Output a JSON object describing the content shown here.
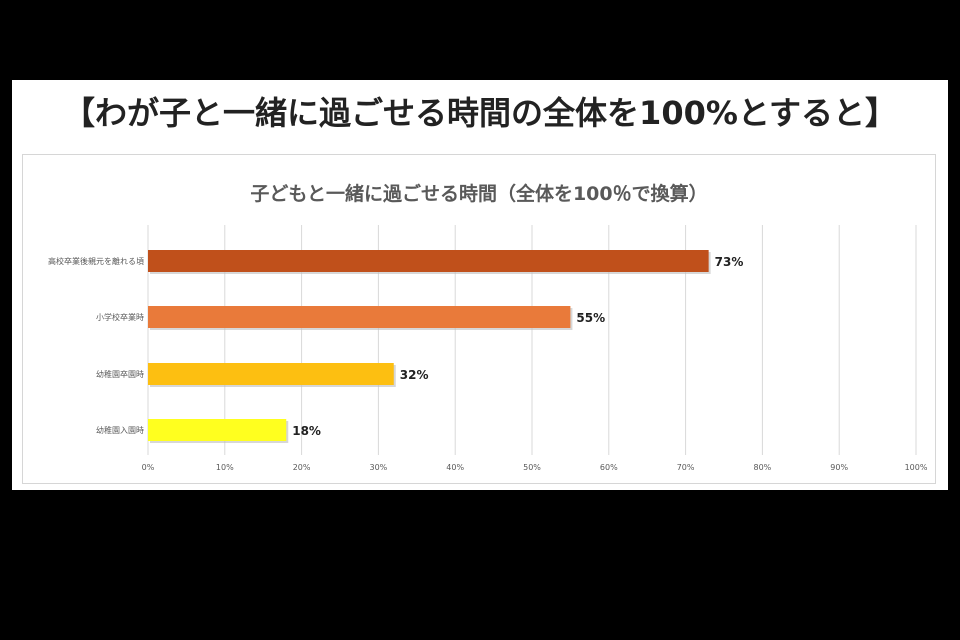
{
  "page": {
    "headline": "【わが子と一緒に過ごせる時間の全体を100%とすると】"
  },
  "colors": {
    "background": "#000000",
    "panel": "#ffffff",
    "gridline": "#d9d9d9"
  },
  "chart_data": {
    "type": "bar",
    "orientation": "horizontal",
    "title": "子どもと一緒に過ごせる時間（全体を100％で換算）",
    "categories": [
      "高校卒業後親元を離れる頃",
      "小学校卒業時",
      "幼稚園卒園時",
      "幼稚園入園時"
    ],
    "values": [
      73,
      55,
      32,
      18
    ],
    "value_labels": [
      "73%",
      "55%",
      "32%",
      "18%"
    ],
    "bar_colors": [
      "#c0501b",
      "#e97a3a",
      "#fdbf11",
      "#ffff1f"
    ],
    "xlim": [
      0,
      100
    ],
    "x_ticks": [
      "0%",
      "10%",
      "20%",
      "30%",
      "40%",
      "50%",
      "60%",
      "70%",
      "80%",
      "90%",
      "100%"
    ],
    "grid": "vertical",
    "legend": "none"
  }
}
